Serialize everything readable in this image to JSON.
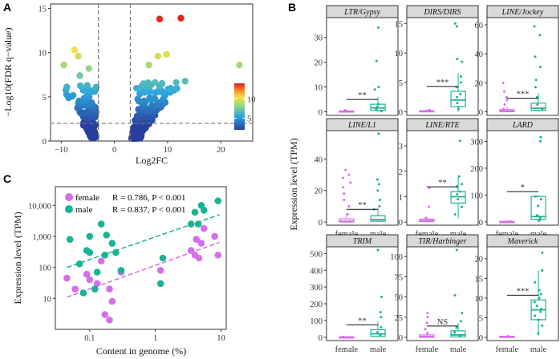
{
  "panels": {
    "a": "A",
    "b": "B",
    "c": "C"
  },
  "colors": {
    "female": "#d46fe8",
    "male": "#1ab394",
    "threshold": "#777777"
  },
  "chart_data": [
    {
      "type": "scatter",
      "title": "",
      "xlabel": "Log2FC",
      "ylabel": "−Log10(FDR q−value)",
      "xlim": [
        -12,
        26
      ],
      "ylim": [
        0,
        15.5
      ],
      "xticks": [
        -10,
        0,
        10,
        20
      ],
      "yticks": [
        0,
        5,
        10,
        15
      ],
      "threshold_lines": {
        "x": [
          -3,
          3
        ],
        "y": [
          2
        ]
      },
      "colorbar": {
        "range": [
          2,
          14
        ],
        "ticks": [
          5,
          10
        ]
      },
      "highlight_points": [
        {
          "x": -9.5,
          "y": 8.6
        },
        {
          "x": -7.5,
          "y": 10.3
        },
        {
          "x": -6.8,
          "y": 9.6
        },
        {
          "x": -4.8,
          "y": 8.2
        },
        {
          "x": -6.5,
          "y": 7.4
        },
        {
          "x": -5.5,
          "y": 5.8
        },
        {
          "x": 8.5,
          "y": 13.8
        },
        {
          "x": 12.5,
          "y": 13.9
        },
        {
          "x": 8.2,
          "y": 9.6
        },
        {
          "x": 9.8,
          "y": 9.8
        },
        {
          "x": 6.5,
          "y": 8.6
        },
        {
          "x": 23.5,
          "y": 8.6
        },
        {
          "x": 5.5,
          "y": 6.5
        },
        {
          "x": 10.5,
          "y": 5.5
        }
      ]
    },
    {
      "type": "scatter",
      "title": "",
      "xlabel": "Content in genome (%)",
      "ylabel": "Expression level (TPM)",
      "xscale": "log",
      "yscale": "log",
      "xlim": [
        0.03,
        12
      ],
      "ylim": [
        1,
        40000
      ],
      "xtick_labels": [
        "0.1",
        "1",
        "10"
      ],
      "ytick_labels": [
        "10",
        "100",
        "1,000",
        "10,000"
      ],
      "series": [
        {
          "name": "female",
          "stat": "R = 0.786,  P < 0.001",
          "points": [
            [
              0.045,
              45
            ],
            [
              0.06,
              20
            ],
            [
              0.09,
              60
            ],
            [
              0.1,
              40
            ],
            [
              0.13,
              30
            ],
            [
              0.15,
              160
            ],
            [
              0.17,
              3
            ],
            [
              0.2,
              2
            ],
            [
              0.2,
              20
            ],
            [
              0.22,
              8
            ],
            [
              0.3,
              70
            ],
            [
              1.2,
              80
            ],
            [
              3.5,
              350
            ],
            [
              4,
              250
            ],
            [
              4.2,
              800
            ],
            [
              4.6,
              200
            ],
            [
              5,
              600
            ],
            [
              5.5,
              1800
            ],
            [
              8,
              1000
            ],
            [
              9,
              250
            ]
          ]
        },
        {
          "name": "male",
          "stat": "R = 0.837,  P < 0.001",
          "points": [
            [
              0.05,
              800
            ],
            [
              0.07,
              130
            ],
            [
              0.08,
              15
            ],
            [
              0.09,
              350
            ],
            [
              0.1,
              300
            ],
            [
              0.1,
              1000
            ],
            [
              0.12,
              20
            ],
            [
              0.13,
              70
            ],
            [
              0.15,
              2500
            ],
            [
              0.17,
              250
            ],
            [
              0.18,
              1100
            ],
            [
              0.22,
              600
            ],
            [
              0.25,
              300
            ],
            [
              0.3,
              80
            ],
            [
              1.2,
              30
            ],
            [
              1.3,
              200
            ],
            [
              3.5,
              2500
            ],
            [
              4,
              6000
            ],
            [
              4.5,
              2500
            ],
            [
              5,
              10000
            ],
            [
              5.5,
              7000
            ],
            [
              9,
              14000
            ]
          ]
        }
      ]
    },
    {
      "type": "box",
      "ylabel": "Expression level (TPM)",
      "groups": [
        "female",
        "male"
      ],
      "panels": [
        {
          "name": "LTR/Gypsy",
          "ylim": [
            -1.5,
            38
          ],
          "yticks": [
            0,
            10,
            20,
            30
          ],
          "sig": "**",
          "female": {
            "q1": 0,
            "med": 0.1,
            "q3": 0.3,
            "lo": 0,
            "hi": 0.7,
            "pts": [
              0.1,
              0.3,
              0.6
            ]
          },
          "male": {
            "q1": 0.5,
            "med": 1.5,
            "q3": 3,
            "lo": 0,
            "hi": 6,
            "pts": [
              0.2,
              1,
              2,
              3,
              9,
              10,
              20.5,
              34
            ]
          }
        },
        {
          "name": "DIRS/DIRS",
          "ylim": [
            -0.6,
            16
          ],
          "yticks": [
            0,
            5,
            10,
            15
          ],
          "sig": "***",
          "female": {
            "q1": 0,
            "med": 0.1,
            "q3": 0.2,
            "lo": 0,
            "hi": 0.5,
            "pts": [
              0.1,
              0.3
            ]
          },
          "male": {
            "q1": 0.9,
            "med": 2,
            "q3": 3.5,
            "lo": 0,
            "hi": 6.5,
            "pts": [
              0.5,
              1.5,
              2.5,
              3,
              4.2,
              5,
              6,
              8.5,
              9,
              14.5,
              15
            ]
          }
        },
        {
          "name": "LINE/Jockey",
          "ylim": [
            -2.5,
            65
          ],
          "yticks": [
            0,
            20,
            40,
            60
          ],
          "sig": "***",
          "female": {
            "q1": 0,
            "med": 0.5,
            "q3": 1.5,
            "lo": 0,
            "hi": 3.5,
            "pts": [
              2,
              5,
              8,
              10,
              14,
              20
            ]
          },
          "male": {
            "q1": 1,
            "med": 2.5,
            "q3": 6,
            "lo": 0,
            "hi": 13,
            "pts": [
              2,
              5,
              10,
              17,
              22,
              31,
              38,
              59,
              53
            ]
          }
        },
        {
          "name": "LINE/L1",
          "ylim": [
            -2,
            58
          ],
          "yticks": [
            0,
            20,
            40
          ],
          "sig": "**",
          "female": {
            "q1": 0,
            "med": 0.5,
            "q3": 2,
            "lo": 0,
            "hi": 5,
            "pts": [
              5,
              10,
              14,
              18,
              22,
              25,
              28,
              30,
              33
            ]
          },
          "male": {
            "q1": 0.5,
            "med": 1.5,
            "q3": 4,
            "lo": 0,
            "hi": 9,
            "pts": [
              8,
              10,
              14,
              20,
              24,
              27,
              56
            ]
          }
        },
        {
          "name": "LINE/RTE",
          "ylim": [
            -0.12,
            3.6
          ],
          "yticks": [
            0,
            1,
            2,
            3
          ],
          "sig": "**",
          "female": {
            "q1": 0.02,
            "med": 0.06,
            "q3": 0.12,
            "lo": 0,
            "hi": 0.22,
            "pts": [
              0.05,
              0.15,
              0.6,
              1.35
            ]
          },
          "male": {
            "q1": 0.75,
            "med": 1,
            "q3": 1.2,
            "lo": 0.15,
            "hi": 1.8,
            "pts": [
              0.3,
              0.6,
              0.9,
              1.1,
              1.2,
              1.4,
              1.5,
              1.8,
              3.2
            ]
          }
        },
        {
          "name": "LARD",
          "ylim": [
            -12,
            340
          ],
          "yticks": [
            0,
            100,
            200,
            300
          ],
          "sig": "*",
          "female": {
            "q1": 0,
            "med": 1,
            "q3": 2,
            "lo": 0,
            "hi": 4,
            "pts": [
              1,
              2
            ]
          },
          "male": {
            "q1": 10,
            "med": 20,
            "q3": 95,
            "lo": 0,
            "hi": 100,
            "pts": [
              5,
              15,
              25,
              60,
              85,
              95,
              300,
              315
            ]
          }
        },
        {
          "name": "TRIM",
          "ylim": [
            -20,
            540
          ],
          "yticks": [
            0,
            100,
            200,
            300,
            400,
            500
          ],
          "sig": "**",
          "female": {
            "q1": 0,
            "med": 1,
            "q3": 2,
            "lo": 0,
            "hi": 4,
            "pts": [
              1,
              2
            ]
          },
          "male": {
            "q1": 5,
            "med": 20,
            "q3": 45,
            "lo": 0,
            "hi": 95,
            "pts": [
              10,
              30,
              60,
              120,
              150,
              240,
              520
            ]
          }
        },
        {
          "name": "TIR/Harbinger",
          "ylim": [
            -4,
            112
          ],
          "yticks": [
            0,
            25,
            50,
            75,
            100
          ],
          "sig": "NS",
          "female": {
            "q1": 0,
            "med": 1,
            "q3": 3,
            "lo": 0,
            "hi": 7,
            "pts": [
              5,
              10,
              18,
              25,
              30
            ]
          },
          "male": {
            "q1": 0.5,
            "med": 3,
            "q3": 8,
            "lo": 0,
            "hi": 18,
            "pts": [
              2,
              6,
              12,
              20,
              30,
              52,
              108
            ]
          }
        },
        {
          "name": "Maverick",
          "ylim": [
            -0.8,
            23
          ],
          "yticks": [
            0,
            5,
            10,
            15,
            20
          ],
          "sig": "***",
          "female": {
            "q1": 0,
            "med": 0.1,
            "q3": 0.3,
            "lo": 0,
            "hi": 0.6,
            "pts": [
              0.1,
              0.3
            ]
          },
          "male": {
            "q1": 4.5,
            "med": 7,
            "q3": 9.5,
            "lo": 0.5,
            "hi": 17,
            "pts": [
              1,
              3,
              4.5,
              5.5,
              6.5,
              7.2,
              8,
              9,
              10,
              11,
              12,
              14,
              17,
              21.5
            ]
          }
        }
      ]
    }
  ]
}
